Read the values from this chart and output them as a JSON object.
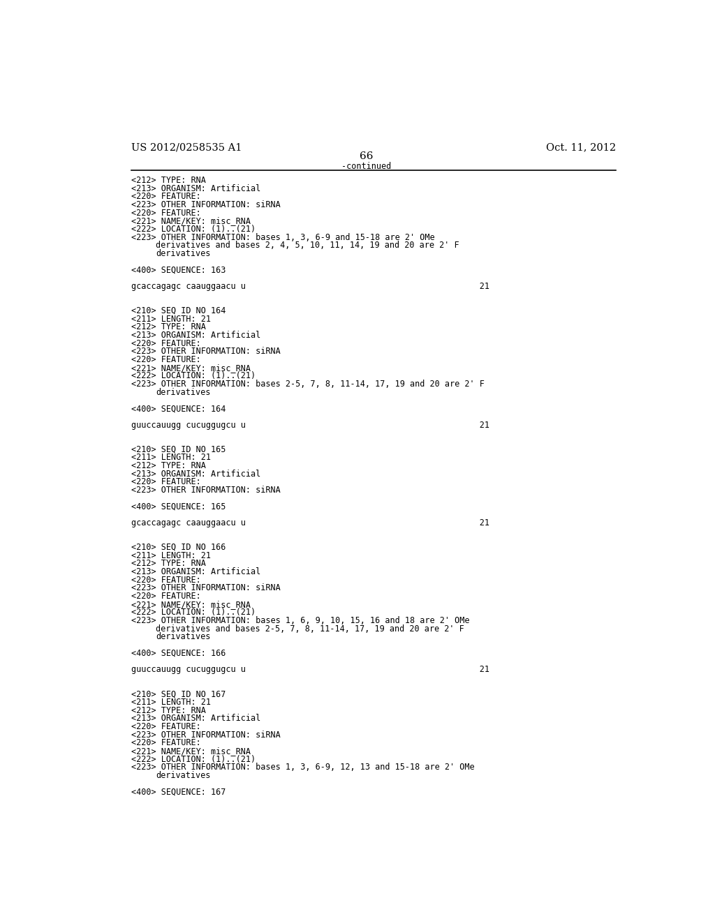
{
  "background_color": "#ffffff",
  "top_left_text": "US 2012/0258535 A1",
  "top_right_text": "Oct. 11, 2012",
  "page_number": "66",
  "continued_text": "-continued",
  "font_size_header": 10.5,
  "font_size_body": 8.5,
  "font_size_page_num": 11,
  "content": [
    "<212> TYPE: RNA",
    "<213> ORGANISM: Artificial",
    "<220> FEATURE:",
    "<223> OTHER INFORMATION: siRNA",
    "<220> FEATURE:",
    "<221> NAME/KEY: misc_RNA",
    "<222> LOCATION: (1)..(21)",
    "<223> OTHER INFORMATION: bases 1, 3, 6-9 and 15-18 are 2' OMe",
    "      derivatives and bases 2, 4, 5, 10, 11, 14, 19 and 20 are 2' F",
    "      derivatives",
    "",
    "<400> SEQUENCE: 163",
    "",
    "gcaccagagc caauggaacu u                                               21",
    "",
    "",
    "<210> SEQ ID NO 164",
    "<211> LENGTH: 21",
    "<212> TYPE: RNA",
    "<213> ORGANISM: Artificial",
    "<220> FEATURE:",
    "<223> OTHER INFORMATION: siRNA",
    "<220> FEATURE:",
    "<221> NAME/KEY: misc_RNA",
    "<222> LOCATION: (1)..(21)",
    "<223> OTHER INFORMATION: bases 2-5, 7, 8, 11-14, 17, 19 and 20 are 2' F",
    "      derivatives",
    "",
    "<400> SEQUENCE: 164",
    "",
    "guuccauugg cucuggugcu u                                               21",
    "",
    "",
    "<210> SEQ ID NO 165",
    "<211> LENGTH: 21",
    "<212> TYPE: RNA",
    "<213> ORGANISM: Artificial",
    "<220> FEATURE:",
    "<223> OTHER INFORMATION: siRNA",
    "",
    "<400> SEQUENCE: 165",
    "",
    "gcaccagagc caauggaacu u                                               21",
    "",
    "",
    "<210> SEQ ID NO 166",
    "<211> LENGTH: 21",
    "<212> TYPE: RNA",
    "<213> ORGANISM: Artificial",
    "<220> FEATURE:",
    "<223> OTHER INFORMATION: siRNA",
    "<220> FEATURE:",
    "<221> NAME/KEY: misc_RNA",
    "<222> LOCATION: (1)..(21)",
    "<223> OTHER INFORMATION: bases 1, 6, 9, 10, 15, 16 and 18 are 2' OMe",
    "      derivatives and bases 2-5, 7, 8, 11-14, 17, 19 and 20 are 2' F",
    "      derivatives",
    "",
    "<400> SEQUENCE: 166",
    "",
    "guuccauugg cucuggugcu u                                               21",
    "",
    "",
    "<210> SEQ ID NO 167",
    "<211> LENGTH: 21",
    "<212> TYPE: RNA",
    "<213> ORGANISM: Artificial",
    "<220> FEATURE:",
    "<223> OTHER INFORMATION: siRNA",
    "<220> FEATURE:",
    "<221> NAME/KEY: misc_RNA",
    "<222> LOCATION: (1)..(21)",
    "<223> OTHER INFORMATION: bases 1, 3, 6-9, 12, 13 and 15-18 are 2' OMe",
    "      derivatives",
    "",
    "<400> SEQUENCE: 167"
  ]
}
